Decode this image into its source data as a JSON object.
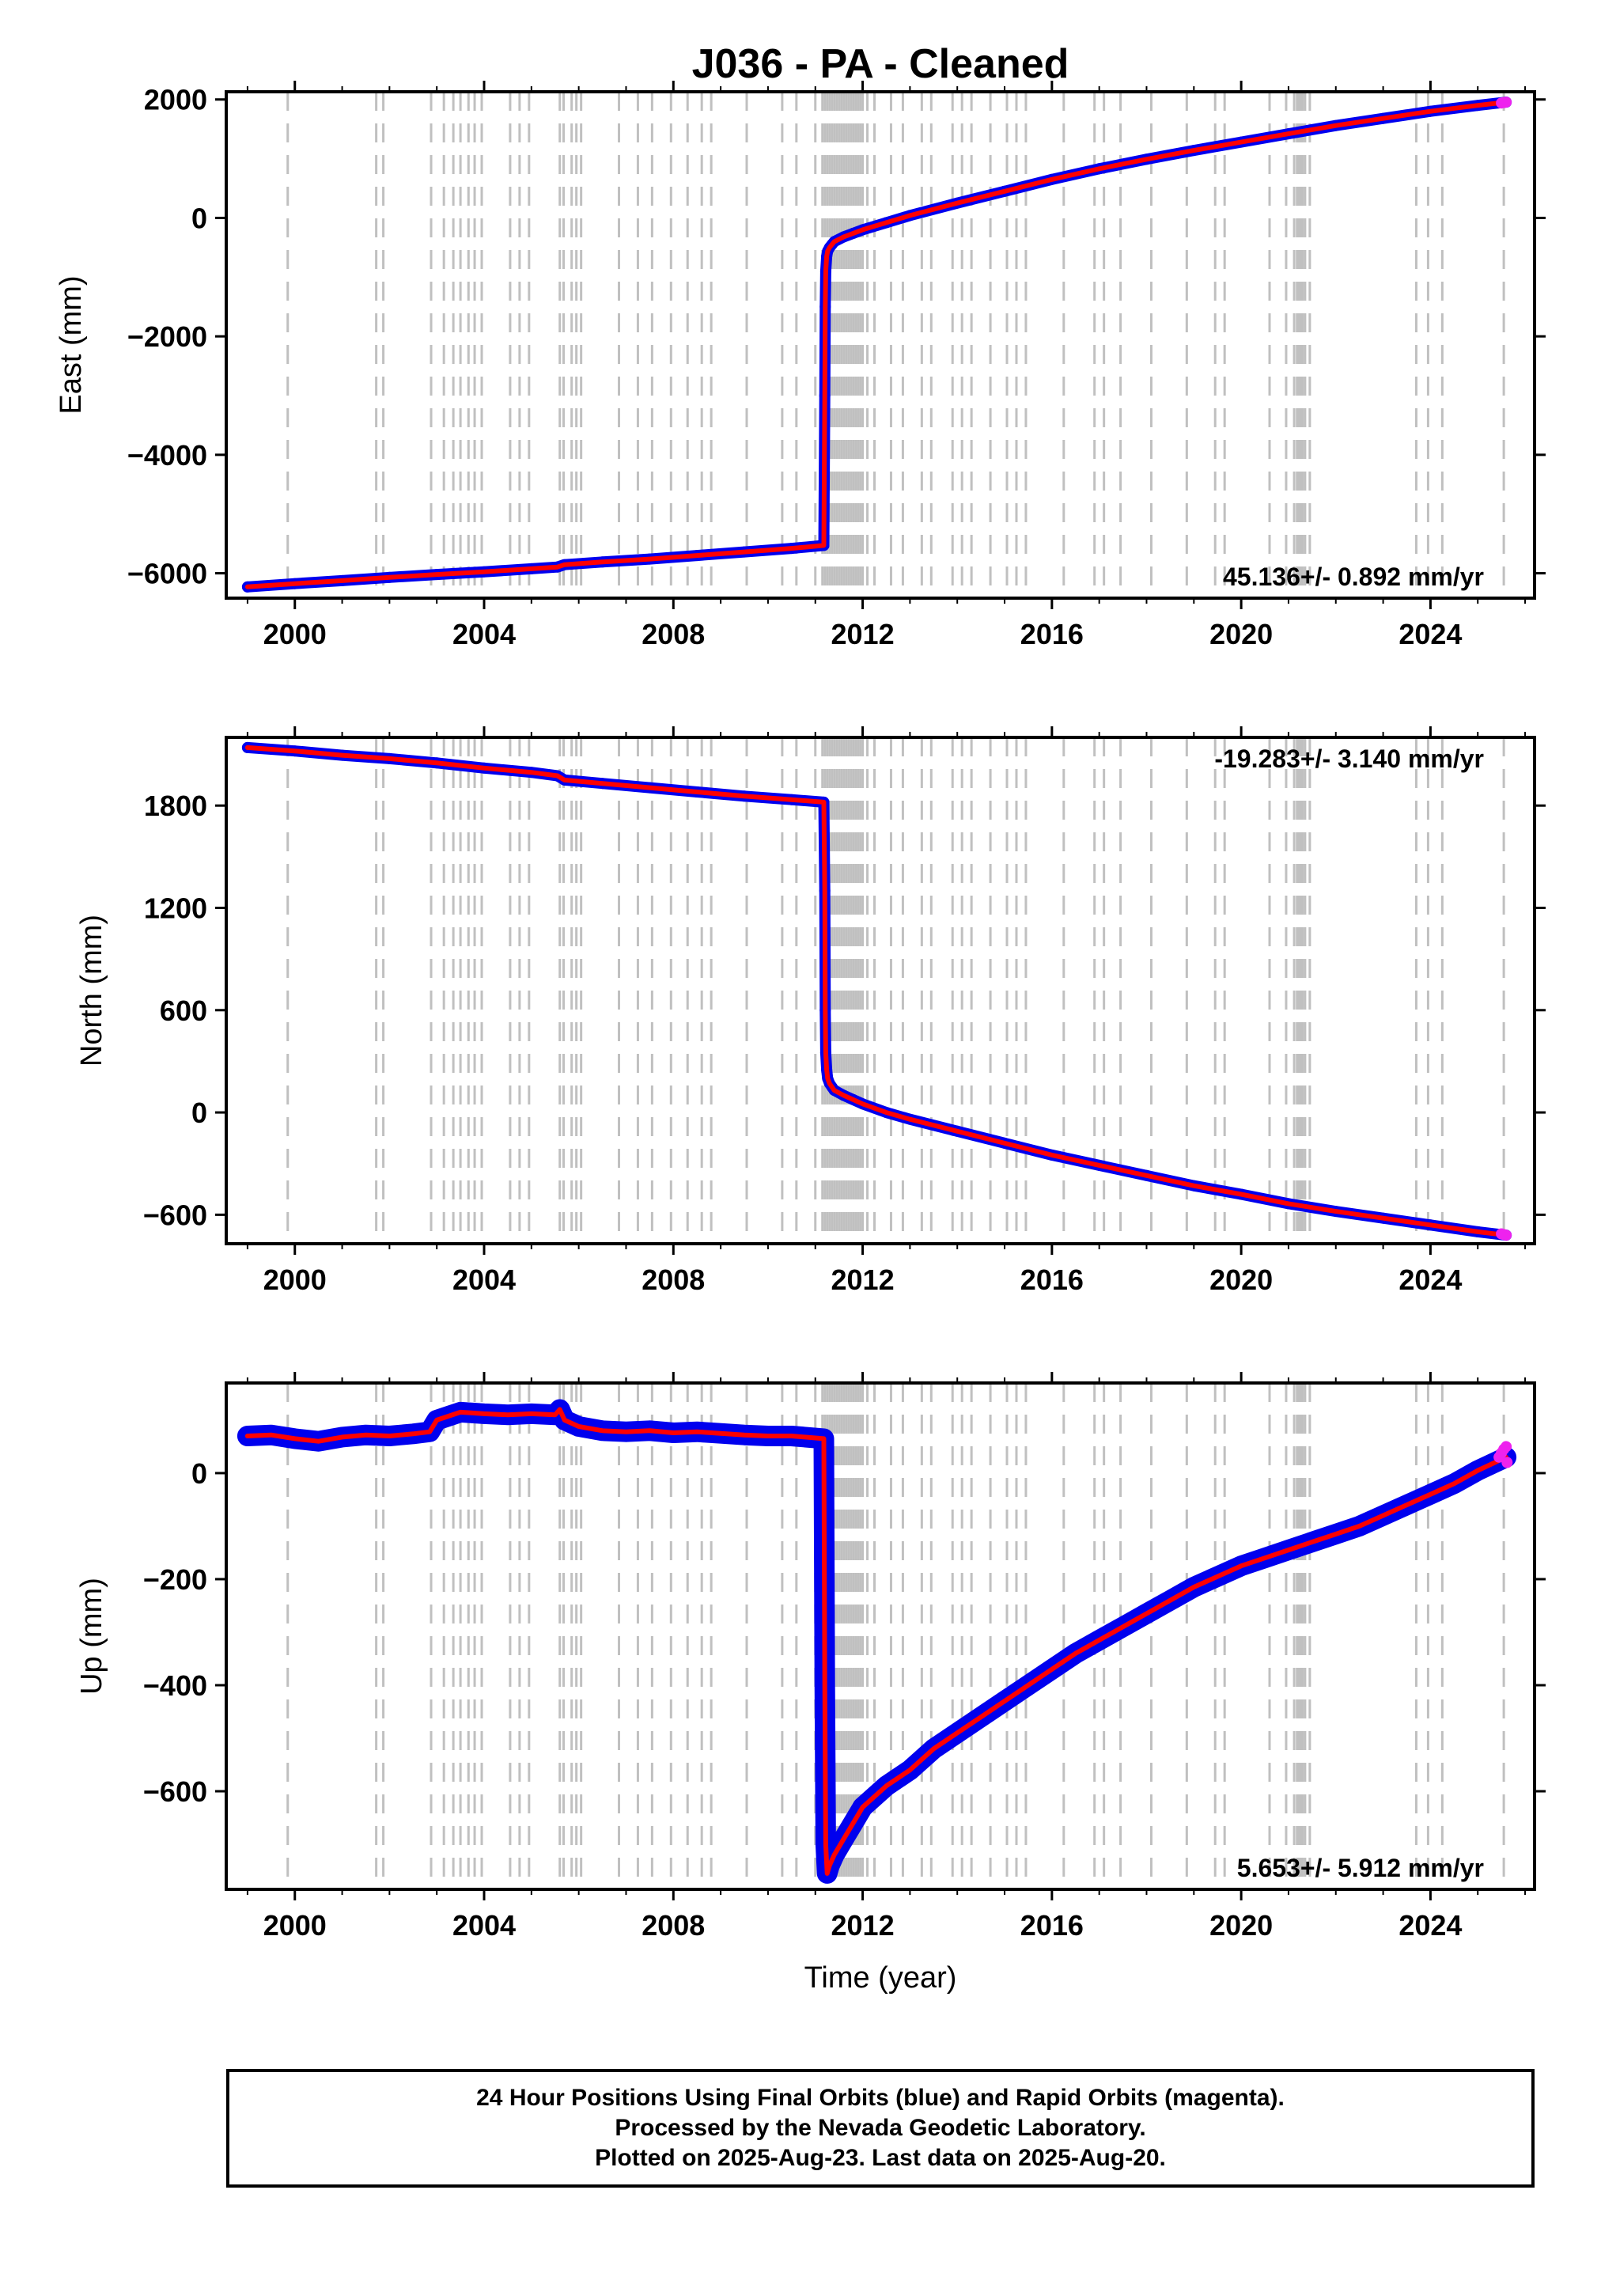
{
  "title": "J036  - PA - Cleaned",
  "xlabel": "Time (year)",
  "x_ticks": [
    2000,
    2004,
    2008,
    2012,
    2016,
    2020,
    2024
  ],
  "colors": {
    "final_orbits": "#0000ee",
    "rapid_orbits": "#ee22ee",
    "model": "#ff0000",
    "event_lines": "#c0c0c0",
    "axes": "#000000"
  },
  "footer": {
    "line1": "24 Hour Positions Using Final Orbits (blue) and Rapid Orbits (magenta).",
    "line2": "Processed by the Nevada Geodetic Laboratory.",
    "line3": "Plotted on 2025-Aug-23. Last data on 2025-Aug-20."
  },
  "event_lines": [
    1999.85,
    2001.72,
    2001.87,
    2002.88,
    2003.15,
    2003.35,
    2003.5,
    2003.67,
    2003.8,
    2003.95,
    2004.55,
    2004.75,
    2004.95,
    2005.6,
    2005.68,
    2005.85,
    2005.95,
    2006.05,
    2006.85,
    2007.25,
    2007.55,
    2007.95,
    2008.3,
    2008.6,
    2008.8,
    2009.55,
    2010.3,
    2010.6,
    2011.0,
    2011.15,
    2011.2,
    2011.25,
    2011.3,
    2011.35,
    2011.4,
    2011.45,
    2011.5,
    2011.55,
    2011.6,
    2011.65,
    2011.7,
    2011.75,
    2011.8,
    2011.85,
    2011.9,
    2011.95,
    2012.0,
    2012.1,
    2012.25,
    2012.6,
    2012.85,
    2013.25,
    2013.45,
    2013.9,
    2014.1,
    2014.3,
    2014.7,
    2015.05,
    2015.25,
    2015.45,
    2016.25,
    2016.9,
    2017.1,
    2017.45,
    2018.1,
    2018.85,
    2019.45,
    2019.65,
    2020.6,
    2020.95,
    2021.12,
    2021.18,
    2021.22,
    2021.26,
    2021.3,
    2021.35,
    2021.45,
    2023.7,
    2023.95,
    2024.25,
    2025.55
  ],
  "chart_data": [
    {
      "type": "scatter",
      "title": "J036  - PA - Cleaned",
      "xlabel": "",
      "ylabel": "East (mm)",
      "xlim": [
        1998.55,
        2026.2
      ],
      "ylim": [
        -6420,
        2130
      ],
      "y_ticks": [
        2000,
        0,
        -2000,
        -4000,
        -6000
      ],
      "rate_label": "45.136+/- 0.892 mm/yr",
      "rate_position": "bottom-right",
      "final_orbits": {
        "x": [
          1999.0,
          2000.0,
          2001.0,
          2002.0,
          2003.0,
          2004.0,
          2005.0,
          2005.55,
          2005.7,
          2006.5,
          2007.5,
          2008.5,
          2009.5,
          2010.5,
          2011.18,
          2011.2,
          2011.21,
          2011.22,
          2011.24,
          2011.26,
          2011.3,
          2011.35,
          2011.4,
          2011.6,
          2011.8,
          2012.0,
          2012.5,
          2013.0,
          2014.0,
          2015.0,
          2016.0,
          2017.0,
          2018.0,
          2019.0,
          2020.0,
          2021.0,
          2022.0,
          2023.0,
          2024.0,
          2025.0,
          2025.6
        ],
        "y": [
          -6230,
          -6175,
          -6125,
          -6070,
          -6020,
          -5975,
          -5925,
          -5895,
          -5855,
          -5810,
          -5760,
          -5700,
          -5640,
          -5580,
          -5530,
          -3000,
          -1500,
          -900,
          -650,
          -560,
          -500,
          -450,
          -400,
          -320,
          -260,
          -200,
          -80,
          40,
          250,
          450,
          650,
          830,
          990,
          1140,
          1280,
          1420,
          1560,
          1680,
          1800,
          1900,
          1955
        ]
      },
      "rapid_orbits": {
        "x": [
          2025.5,
          2025.55,
          2025.6
        ],
        "y": [
          1940,
          1948,
          1955
        ]
      }
    },
    {
      "type": "scatter",
      "title": "",
      "xlabel": "",
      "ylabel": "North (mm)",
      "xlim": [
        1998.55,
        2026.2
      ],
      "ylim": [
        -770,
        2200
      ],
      "y_ticks": [
        1800,
        1200,
        600,
        0,
        -600
      ],
      "rate_label": "-19.283+/- 3.140 mm/yr",
      "rate_position": "top-right",
      "final_orbits": {
        "x": [
          1999.0,
          2000.0,
          2001.0,
          2002.0,
          2003.0,
          2004.0,
          2005.0,
          2005.55,
          2005.7,
          2006.5,
          2007.5,
          2008.5,
          2009.5,
          2010.5,
          2011.18,
          2011.2,
          2011.21,
          2011.22,
          2011.24,
          2011.26,
          2011.3,
          2011.35,
          2011.4,
          2011.6,
          2011.8,
          2012.0,
          2012.5,
          2013.0,
          2014.0,
          2015.0,
          2016.0,
          2017.0,
          2018.0,
          2019.0,
          2020.0,
          2021.0,
          2022.0,
          2023.0,
          2024.0,
          2025.0,
          2025.6
        ],
        "y": [
          2140,
          2120,
          2095,
          2075,
          2050,
          2020,
          1995,
          1975,
          1950,
          1930,
          1905,
          1880,
          1855,
          1835,
          1820,
          1300,
          600,
          350,
          250,
          200,
          170,
          150,
          130,
          100,
          75,
          50,
          0,
          -40,
          -110,
          -180,
          -250,
          -310,
          -370,
          -430,
          -480,
          -535,
          -580,
          -620,
          -660,
          -700,
          -720
        ]
      },
      "rapid_orbits": {
        "x": [
          2025.5,
          2025.55,
          2025.6
        ],
        "y": [
          -712,
          -716,
          -720
        ]
      }
    },
    {
      "type": "scatter",
      "title": "",
      "xlabel": "Time (year)",
      "ylabel": "Up (mm)",
      "xlim": [
        1998.55,
        2026.2
      ],
      "ylim": [
        -785,
        170
      ],
      "y_ticks": [
        0,
        -200,
        -400,
        -600
      ],
      "rate_label": "5.653+/- 5.912 mm/yr",
      "rate_position": "bottom-right",
      "final_orbits": {
        "x": [
          1999.0,
          1999.5,
          2000.0,
          2000.5,
          2001.0,
          2001.5,
          2002.0,
          2002.5,
          2002.85,
          2003.0,
          2003.5,
          2004.0,
          2004.5,
          2005.0,
          2005.5,
          2005.6,
          2005.7,
          2006.0,
          2006.5,
          2007.0,
          2007.5,
          2008.0,
          2008.5,
          2009.0,
          2009.5,
          2010.0,
          2010.5,
          2011.18,
          2011.2,
          2011.22,
          2011.25,
          2011.3,
          2011.4,
          2011.6,
          2011.8,
          2012.0,
          2012.5,
          2013.0,
          2013.5,
          2014.0,
          2014.5,
          2015.0,
          2015.5,
          2016.0,
          2016.5,
          2017.0,
          2017.5,
          2018.0,
          2018.5,
          2019.0,
          2019.5,
          2020.0,
          2020.5,
          2021.0,
          2021.5,
          2022.0,
          2022.5,
          2023.0,
          2023.5,
          2024.0,
          2024.5,
          2025.0,
          2025.6
        ],
        "y": [
          70,
          72,
          65,
          60,
          68,
          72,
          70,
          74,
          78,
          100,
          115,
          112,
          110,
          112,
          110,
          120,
          100,
          88,
          80,
          78,
          80,
          76,
          78,
          75,
          72,
          70,
          70,
          65,
          -400,
          -700,
          -755,
          -740,
          -720,
          -690,
          -660,
          -630,
          -590,
          -560,
          -520,
          -490,
          -460,
          -430,
          -400,
          -370,
          -340,
          -315,
          -290,
          -265,
          -240,
          -215,
          -195,
          -175,
          -160,
          -145,
          -130,
          -115,
          -100,
          -80,
          -60,
          -40,
          -20,
          5,
          30
        ]
      },
      "rapid_orbits": {
        "x": [
          2025.45,
          2025.5,
          2025.55,
          2025.6,
          2025.62
        ],
        "y": [
          30,
          38,
          45,
          50,
          20
        ]
      }
    }
  ]
}
